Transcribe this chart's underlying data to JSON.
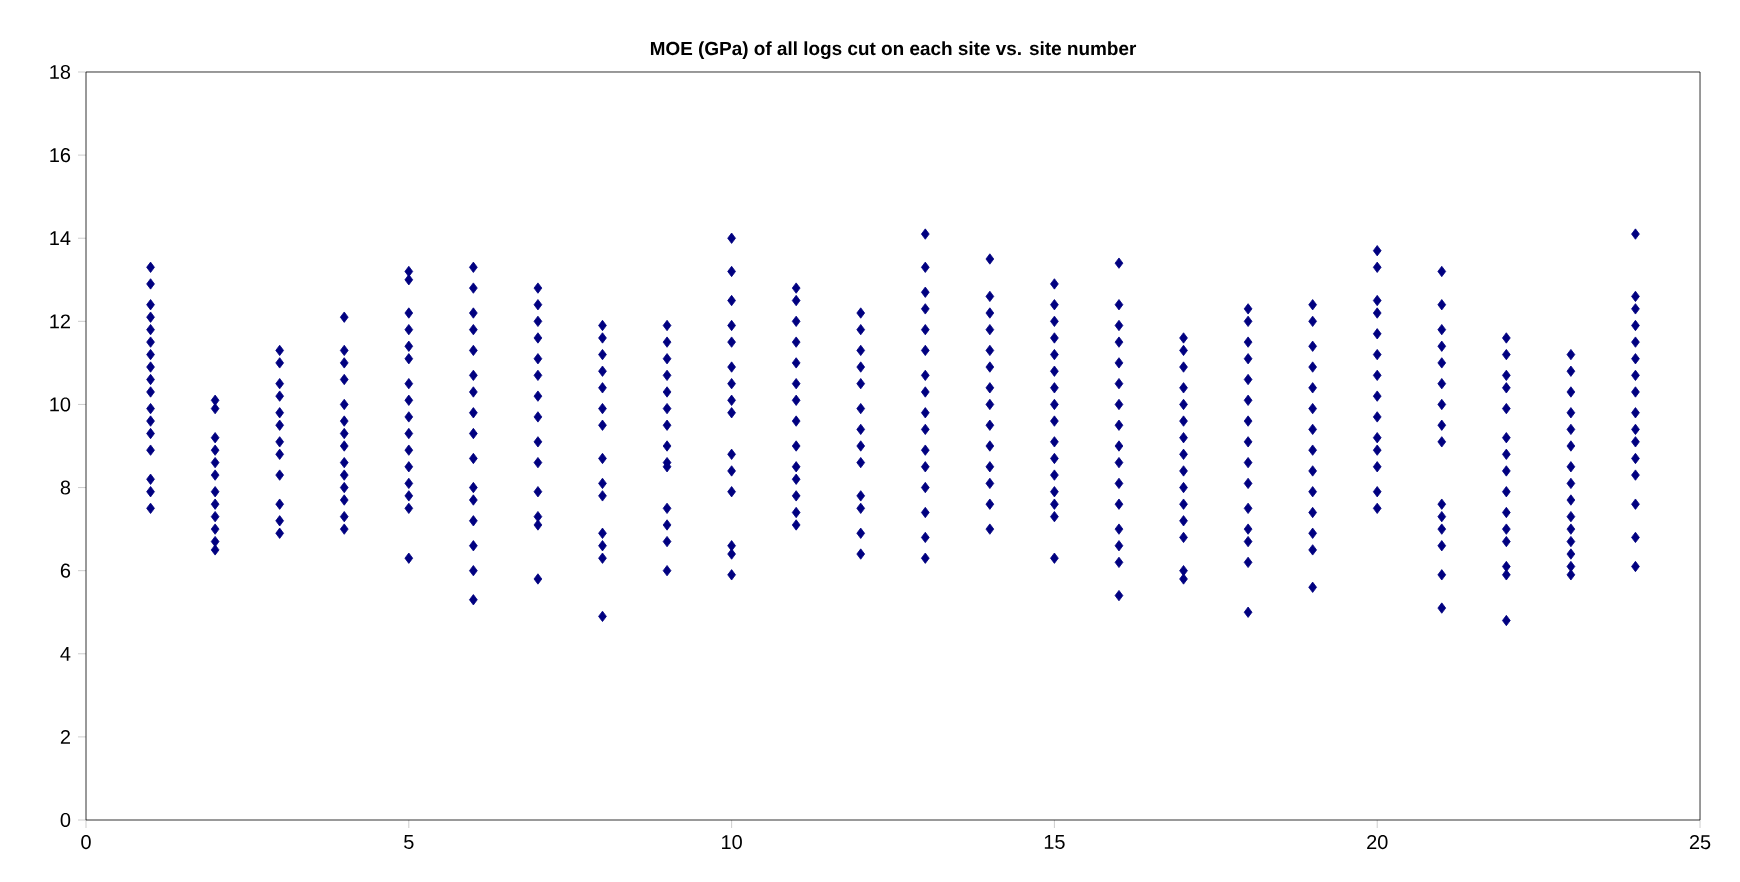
{
  "chart_data": {
    "type": "scatter",
    "title": "MOE (GPa) of all logs cut on each site vs. site number",
    "xlim": [
      0,
      25
    ],
    "xticks": [
      0,
      5,
      10,
      15,
      20,
      25
    ],
    "ylim": [
      0,
      18
    ],
    "yticks": [
      0,
      2,
      4,
      6,
      8,
      10,
      12,
      14,
      16,
      18
    ],
    "marker": "diamond",
    "grid": false,
    "series": [
      {
        "color": "#000080",
        "x": [
          1,
          1,
          1,
          1,
          1,
          1,
          1,
          1,
          1,
          1,
          1,
          1,
          1,
          1,
          1,
          1,
          1
        ],
        "values": [
          13.3,
          12.9,
          12.4,
          12.1,
          11.8,
          11.5,
          11.2,
          10.9,
          10.6,
          10.3,
          9.9,
          9.6,
          9.3,
          8.9,
          8.2,
          7.9,
          7.5
        ]
      },
      {
        "color": "#000080",
        "x": [
          2,
          2,
          2,
          2,
          2,
          2,
          2,
          2,
          2,
          2,
          2,
          2
        ],
        "values": [
          10.1,
          9.9,
          9.2,
          8.9,
          8.6,
          8.3,
          7.9,
          7.6,
          7.3,
          7.0,
          6.7,
          6.5
        ]
      },
      {
        "color": "#000080",
        "x": [
          3,
          3,
          3,
          3,
          3,
          3,
          3,
          3,
          3,
          3,
          3,
          3
        ],
        "values": [
          11.3,
          11.0,
          10.5,
          10.2,
          9.8,
          9.5,
          9.1,
          8.8,
          8.3,
          7.6,
          7.2,
          6.9
        ]
      },
      {
        "color": "#000080",
        "x": [
          4,
          4,
          4,
          4,
          4,
          4,
          4,
          4,
          4,
          4,
          4,
          4,
          4,
          4
        ],
        "values": [
          12.1,
          11.3,
          11.0,
          10.6,
          10.0,
          9.6,
          9.3,
          9.0,
          8.6,
          8.3,
          8.0,
          7.7,
          7.3,
          7.0
        ]
      },
      {
        "color": "#000080",
        "x": [
          5,
          5,
          5,
          5,
          5,
          5,
          5,
          5,
          5,
          5,
          5,
          5,
          5,
          5,
          5,
          5
        ],
        "values": [
          13.2,
          13.0,
          12.2,
          11.8,
          11.4,
          11.1,
          10.5,
          10.1,
          9.7,
          9.3,
          8.9,
          8.5,
          8.1,
          7.8,
          7.5,
          6.3
        ]
      },
      {
        "color": "#000080",
        "x": [
          6,
          6,
          6,
          6,
          6,
          6,
          6,
          6,
          6,
          6,
          6,
          6,
          6,
          6,
          6,
          6
        ],
        "values": [
          13.3,
          12.8,
          12.2,
          11.8,
          11.3,
          10.7,
          10.3,
          9.8,
          9.3,
          8.7,
          8.0,
          7.7,
          7.2,
          6.6,
          6.0,
          5.3
        ]
      },
      {
        "color": "#000080",
        "x": [
          7,
          7,
          7,
          7,
          7,
          7,
          7,
          7,
          7,
          7,
          7,
          7,
          7,
          7
        ],
        "values": [
          12.8,
          12.4,
          12.0,
          11.6,
          11.1,
          10.7,
          10.2,
          9.7,
          9.1,
          8.6,
          7.9,
          7.3,
          7.1,
          5.8
        ]
      },
      {
        "color": "#000080",
        "x": [
          8,
          8,
          8,
          8,
          8,
          8,
          8,
          8,
          8,
          8,
          8,
          8,
          8,
          8
        ],
        "values": [
          11.9,
          11.6,
          11.2,
          10.8,
          10.4,
          9.9,
          9.5,
          8.7,
          8.1,
          7.8,
          6.9,
          6.6,
          6.3,
          4.9
        ]
      },
      {
        "color": "#000080",
        "x": [
          9,
          9,
          9,
          9,
          9,
          9,
          9,
          9,
          9,
          9,
          9,
          9,
          9,
          9
        ],
        "values": [
          11.9,
          11.5,
          11.1,
          10.7,
          10.3,
          9.9,
          9.5,
          9.0,
          8.6,
          8.5,
          7.5,
          7.1,
          6.7,
          6.0
        ]
      },
      {
        "color": "#000080",
        "x": [
          10,
          10,
          10,
          10,
          10,
          10,
          10,
          10,
          10,
          10,
          10,
          10,
          10,
          10,
          10
        ],
        "values": [
          14.0,
          13.2,
          12.5,
          11.9,
          11.5,
          10.9,
          10.5,
          10.1,
          9.8,
          8.8,
          8.4,
          7.9,
          6.6,
          6.4,
          5.9
        ]
      },
      {
        "color": "#000080",
        "x": [
          11,
          11,
          11,
          11,
          11,
          11,
          11,
          11,
          11,
          11,
          11,
          11,
          11,
          11
        ],
        "values": [
          12.8,
          12.5,
          12.0,
          11.5,
          11.0,
          10.5,
          10.1,
          9.6,
          9.0,
          8.5,
          8.2,
          7.8,
          7.4,
          7.1
        ]
      },
      {
        "color": "#000080",
        "x": [
          12,
          12,
          12,
          12,
          12,
          12,
          12,
          12,
          12,
          12,
          12,
          12,
          12
        ],
        "values": [
          12.2,
          11.8,
          11.3,
          10.9,
          10.5,
          9.9,
          9.4,
          9.0,
          8.6,
          7.8,
          7.5,
          6.9,
          6.4
        ]
      },
      {
        "color": "#000080",
        "x": [
          13,
          13,
          13,
          13,
          13,
          13,
          13,
          13,
          13,
          13,
          13,
          13,
          13,
          13,
          13,
          13
        ],
        "values": [
          14.1,
          13.3,
          12.7,
          12.3,
          11.8,
          11.3,
          10.7,
          10.3,
          9.8,
          9.4,
          8.9,
          8.5,
          8.0,
          7.4,
          6.8,
          6.3
        ]
      },
      {
        "color": "#000080",
        "x": [
          14,
          14,
          14,
          14,
          14,
          14,
          14,
          14,
          14,
          14,
          14,
          14,
          14,
          14
        ],
        "values": [
          13.5,
          12.6,
          12.2,
          11.8,
          11.3,
          10.9,
          10.4,
          10.0,
          9.5,
          9.0,
          8.5,
          8.1,
          7.6,
          7.0
        ]
      },
      {
        "color": "#000080",
        "x": [
          15,
          15,
          15,
          15,
          15,
          15,
          15,
          15,
          15,
          15,
          15,
          15,
          15,
          15,
          15,
          15
        ],
        "values": [
          12.9,
          12.4,
          12.0,
          11.6,
          11.2,
          10.8,
          10.4,
          10.0,
          9.6,
          9.1,
          8.7,
          8.3,
          7.9,
          7.6,
          7.3,
          6.3
        ]
      },
      {
        "color": "#000080",
        "x": [
          16,
          16,
          16,
          16,
          16,
          16,
          16,
          16,
          16,
          16,
          16,
          16,
          16,
          16,
          16,
          16
        ],
        "values": [
          13.4,
          12.4,
          11.9,
          11.5,
          11.0,
          10.5,
          10.0,
          9.5,
          9.0,
          8.6,
          8.1,
          7.6,
          7.0,
          6.6,
          6.2,
          5.4
        ]
      },
      {
        "color": "#000080",
        "x": [
          17,
          17,
          17,
          17,
          17,
          17,
          17,
          17,
          17,
          17,
          17,
          17,
          17,
          17,
          17
        ],
        "values": [
          11.6,
          11.3,
          10.9,
          10.4,
          10.0,
          9.6,
          9.2,
          8.8,
          8.4,
          8.0,
          7.6,
          7.2,
          6.8,
          6.0,
          5.8
        ]
      },
      {
        "color": "#000080",
        "x": [
          18,
          18,
          18,
          18,
          18,
          18,
          18,
          18,
          18,
          18,
          18,
          18,
          18,
          18,
          18
        ],
        "values": [
          12.3,
          12.0,
          11.5,
          11.1,
          10.6,
          10.1,
          9.6,
          9.1,
          8.6,
          8.1,
          7.5,
          7.0,
          6.7,
          6.2,
          5.0
        ]
      },
      {
        "color": "#000080",
        "x": [
          19,
          19,
          19,
          19,
          19,
          19,
          19,
          19,
          19,
          19,
          19,
          19,
          19,
          19
        ],
        "values": [
          12.4,
          12.0,
          11.4,
          10.9,
          10.4,
          9.9,
          9.4,
          8.9,
          8.4,
          7.9,
          7.4,
          6.9,
          6.5,
          5.6
        ]
      },
      {
        "color": "#000080",
        "x": [
          20,
          20,
          20,
          20,
          20,
          20,
          20,
          20,
          20,
          20,
          20,
          20,
          20,
          20
        ],
        "values": [
          13.7,
          13.3,
          12.5,
          12.2,
          11.7,
          11.2,
          10.7,
          10.2,
          9.7,
          9.2,
          8.9,
          8.5,
          7.9,
          7.5
        ]
      },
      {
        "color": "#000080",
        "x": [
          21,
          21,
          21,
          21,
          21,
          21,
          21,
          21,
          21,
          21,
          21,
          21,
          21,
          21,
          21
        ],
        "values": [
          13.2,
          12.4,
          11.8,
          11.4,
          11.0,
          10.5,
          10.0,
          9.5,
          9.1,
          7.6,
          7.3,
          7.0,
          6.6,
          5.9,
          5.1
        ]
      },
      {
        "color": "#000080",
        "x": [
          22,
          22,
          22,
          22,
          22,
          22,
          22,
          22,
          22,
          22,
          22,
          22,
          22,
          22,
          22
        ],
        "values": [
          11.6,
          11.2,
          10.7,
          10.4,
          9.9,
          9.2,
          8.8,
          8.4,
          7.9,
          7.4,
          7.0,
          6.7,
          6.1,
          5.9,
          4.8
        ]
      },
      {
        "color": "#000080",
        "x": [
          23,
          23,
          23,
          23,
          23,
          23,
          23,
          23,
          23,
          23,
          23,
          23,
          23,
          23,
          23
        ],
        "values": [
          11.2,
          10.8,
          10.3,
          9.8,
          9.4,
          9.0,
          8.5,
          8.1,
          7.7,
          7.3,
          7.0,
          6.7,
          6.4,
          6.1,
          5.9
        ]
      },
      {
        "color": "#000080",
        "x": [
          24,
          24,
          24,
          24,
          24,
          24,
          24,
          24,
          24,
          24,
          24,
          24,
          24,
          24,
          24,
          24
        ],
        "values": [
          14.1,
          12.6,
          12.3,
          11.9,
          11.5,
          11.1,
          10.7,
          10.3,
          9.8,
          9.4,
          9.1,
          8.7,
          8.3,
          7.6,
          6.8,
          6.1
        ]
      }
    ]
  }
}
